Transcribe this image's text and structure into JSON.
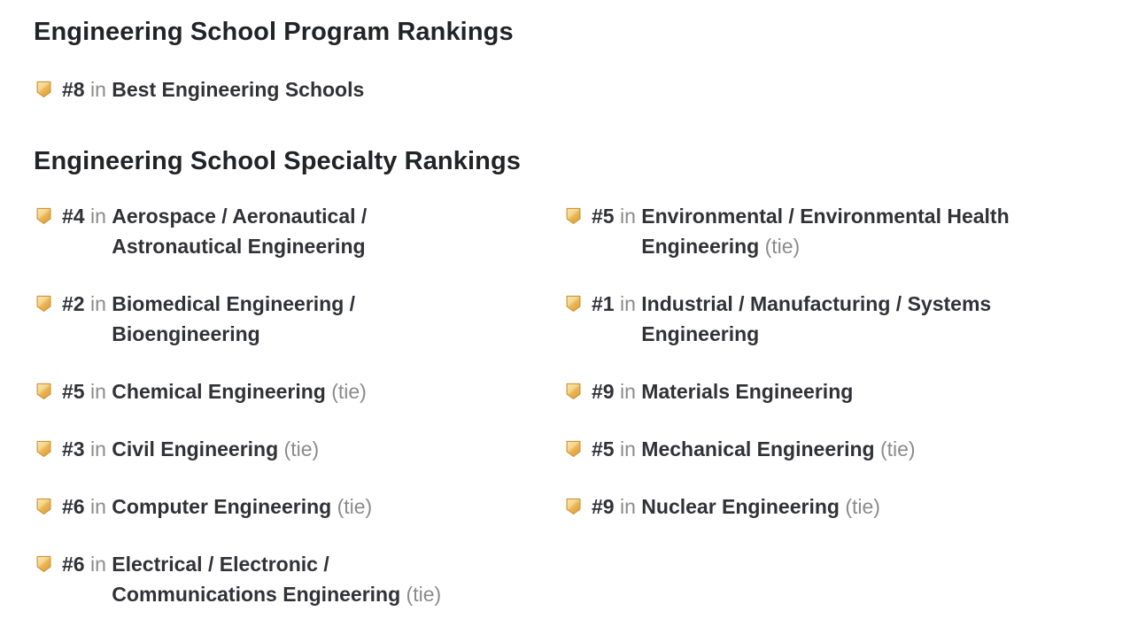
{
  "labels": {
    "in_word": "in",
    "tie_suffix": "(tie)"
  },
  "sections": {
    "program": {
      "heading": "Engineering School Program Rankings"
    },
    "specialty": {
      "heading": "Engineering School Specialty Rankings"
    }
  },
  "program_rankings": [
    {
      "rank": "#8",
      "name": "Best Engineering Schools",
      "tie": false
    }
  ],
  "specialty_rankings": {
    "left": [
      {
        "rank": "#4",
        "name": "Aerospace / Aeronautical / Astronautical Engineering",
        "tie": false
      },
      {
        "rank": "#2",
        "name": "Biomedical Engineering / Bioengineering",
        "tie": false
      },
      {
        "rank": "#5",
        "name": "Chemical Engineering",
        "tie": true
      },
      {
        "rank": "#3",
        "name": "Civil Engineering",
        "tie": true
      },
      {
        "rank": "#6",
        "name": "Computer Engineering",
        "tie": true
      },
      {
        "rank": "#6",
        "name": "Electrical / Electronic / Communications Engineering",
        "tie": true
      }
    ],
    "right": [
      {
        "rank": "#5",
        "name": "Environmental / Environmental Health Engineering",
        "tie": true
      },
      {
        "rank": "#1",
        "name": "Industrial / Manufacturing / Systems Engineering",
        "tie": false
      },
      {
        "rank": "#9",
        "name": "Materials Engineering",
        "tie": false
      },
      {
        "rank": "#5",
        "name": "Mechanical Engineering",
        "tie": true
      },
      {
        "rank": "#9",
        "name": "Nuclear Engineering",
        "tie": true
      }
    ]
  },
  "icons": {
    "badge": "gold-shield-badge"
  },
  "colors": {
    "badge_light": "#F9E7B2",
    "badge_mid_light": "#F4D68B",
    "badge_mid_dark": "#EBB557",
    "badge_dark": "#E09F38",
    "badge_border": "#CD9434",
    "heading_text": "#222325",
    "body_text": "#313236",
    "muted_text": "#8B8B8B",
    "background": "#FFFFFF"
  }
}
